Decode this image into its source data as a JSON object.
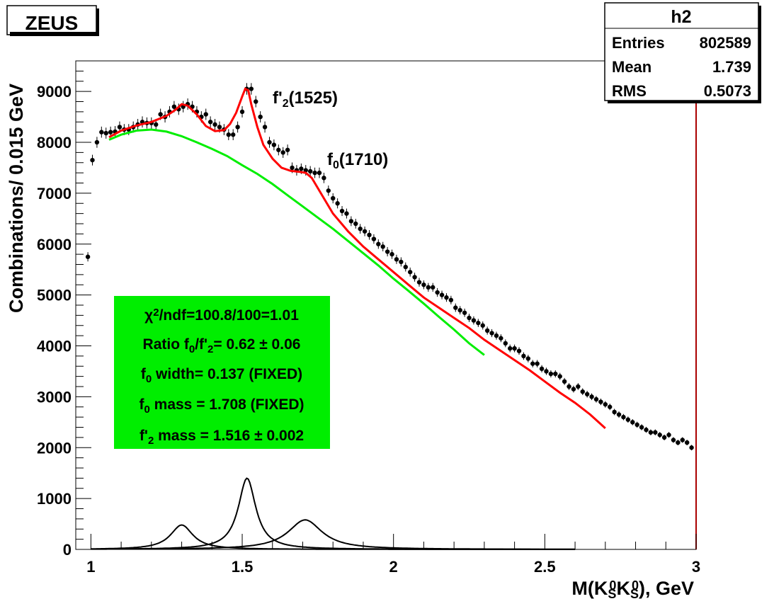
{
  "colors": {
    "frame": "#000000",
    "data_points": "#000000",
    "total_fit": "#ff0000",
    "background_fit": "#00ff00",
    "signal_peaks": "#000000",
    "fit_box": "#00ee00",
    "right_edge_line": "#aa0000"
  },
  "logo": {
    "text": "ZEUS"
  },
  "stats_box": {
    "title": "h2",
    "rows": [
      {
        "label": "Entries",
        "value": "802589"
      },
      {
        "label": "Mean",
        "value": "1.739"
      },
      {
        "label": "RMS",
        "value": "0.5073"
      }
    ]
  },
  "annotations": {
    "f2prime": {
      "base": "f'",
      "sub": "2",
      "rest": "(1525)"
    },
    "f0": {
      "base": "f",
      "sub": "0",
      "rest": "(1710)"
    }
  },
  "fit_box": {
    "line1": {
      "chi": "χ",
      "sup": "2",
      "rest": "/ndf=100.8/100=1.01"
    },
    "line2": {
      "pre": "Ratio f",
      "sub1": "0",
      "mid": "/f'",
      "sub2": "2",
      "post": "= 0.62 ± 0.06"
    },
    "line3": {
      "pre": "f",
      "sub": "0",
      "post": " width= 0.137 (FIXED)"
    },
    "line4": {
      "pre": "f",
      "sub": "0",
      "post": " mass = 1.708 (FIXED)"
    },
    "line5": {
      "pre": "f'",
      "sub": "2",
      "post": " mass = 1.516 ± 0.002"
    }
  },
  "chart_data": {
    "type": "scatter",
    "xlabel": {
      "pre": "M(K",
      "sub1": "S",
      "sup1": "0",
      "mid": "K",
      "sub2": "S",
      "sup2": "0",
      "post": "), GeV"
    },
    "ylabel": "Combinations/ 0.015 GeV",
    "xlim": [
      0.95,
      3.0
    ],
    "ylim": [
      0,
      9600
    ],
    "xticks": [
      1,
      1.5,
      2,
      2.5,
      3
    ],
    "xtick_labels": [
      "1",
      "1.5",
      "2",
      "2.5",
      "3"
    ],
    "yticks": [
      0,
      1000,
      2000,
      3000,
      4000,
      5000,
      6000,
      7000,
      8000,
      9000
    ],
    "ytick_labels": [
      "0",
      "1000",
      "2000",
      "3000",
      "4000",
      "5000",
      "6000",
      "7000",
      "8000",
      "9000"
    ],
    "series": [
      {
        "kind": "points",
        "x": [
          0.99,
          1.005,
          1.02,
          1.035,
          1.05,
          1.065,
          1.08,
          1.095,
          1.11,
          1.125,
          1.14,
          1.155,
          1.17,
          1.185,
          1.2,
          1.215,
          1.23,
          1.245,
          1.26,
          1.275,
          1.29,
          1.305,
          1.32,
          1.335,
          1.35,
          1.365,
          1.38,
          1.395,
          1.41,
          1.425,
          1.44,
          1.455,
          1.47,
          1.485,
          1.5,
          1.515,
          1.53,
          1.545,
          1.56,
          1.575,
          1.59,
          1.605,
          1.62,
          1.635,
          1.65,
          1.665,
          1.68,
          1.695,
          1.71,
          1.725,
          1.74,
          1.755,
          1.77,
          1.785,
          1.8,
          1.815,
          1.83,
          1.845,
          1.86,
          1.875,
          1.89,
          1.905,
          1.92,
          1.935,
          1.95,
          1.965,
          1.98,
          1.995,
          2.01,
          2.025,
          2.04,
          2.055,
          2.07,
          2.085,
          2.1,
          2.115,
          2.13,
          2.145,
          2.16,
          2.175,
          2.19,
          2.205,
          2.22,
          2.235,
          2.25,
          2.265,
          2.28,
          2.295,
          2.31,
          2.325,
          2.34,
          2.355,
          2.37,
          2.385,
          2.4,
          2.415,
          2.43,
          2.445,
          2.46,
          2.475,
          2.49,
          2.505,
          2.52,
          2.535,
          2.55,
          2.565,
          2.58,
          2.595,
          2.61,
          2.625,
          2.64,
          2.655,
          2.67,
          2.685,
          2.7,
          2.715,
          2.73,
          2.745,
          2.76,
          2.775,
          2.79,
          2.805,
          2.82,
          2.835,
          2.85,
          2.865,
          2.88,
          2.895,
          2.91,
          2.925,
          2.94,
          2.955,
          2.97,
          2.985
        ],
        "y": [
          5750,
          7650,
          8000,
          8200,
          8180,
          8200,
          8210,
          8300,
          8250,
          8250,
          8300,
          8350,
          8400,
          8380,
          8380,
          8350,
          8550,
          8500,
          8600,
          8700,
          8650,
          8700,
          8750,
          8700,
          8600,
          8500,
          8550,
          8400,
          8350,
          8300,
          8250,
          8150,
          8150,
          8300,
          8600,
          9050,
          9050,
          8800,
          8500,
          8300,
          8000,
          7950,
          7850,
          7800,
          7850,
          7500,
          7450,
          7480,
          7450,
          7430,
          7400,
          7400,
          7300,
          7050,
          6900,
          6800,
          6650,
          6600,
          6450,
          6400,
          6300,
          6250,
          6180,
          6100,
          6000,
          5950,
          5850,
          5800,
          5700,
          5650,
          5550,
          5450,
          5350,
          5250,
          5200,
          5150,
          5150,
          5050,
          5000,
          4950,
          4900,
          4750,
          4700,
          4650,
          4550,
          4500,
          4450,
          4400,
          4300,
          4250,
          4200,
          4150,
          4050,
          3950,
          3950,
          3900,
          3800,
          3750,
          3650,
          3650,
          3550,
          3500,
          3450,
          3450,
          3400,
          3300,
          3200,
          3150,
          3200,
          3100,
          3050,
          3000,
          2950,
          2900,
          2850,
          2800,
          2700,
          2650,
          2600,
          2550,
          2500,
          2450,
          2400,
          2350,
          2300,
          2300,
          2250,
          2200,
          2250,
          2150,
          2100,
          2150,
          2100,
          2000
        ]
      },
      {
        "kind": "total_fit",
        "x": [
          1.06,
          1.1,
          1.15,
          1.2,
          1.25,
          1.28,
          1.3,
          1.32,
          1.35,
          1.38,
          1.41,
          1.44,
          1.46,
          1.48,
          1.5,
          1.51,
          1.52,
          1.53,
          1.55,
          1.57,
          1.6,
          1.63,
          1.66,
          1.69,
          1.71,
          1.73,
          1.76,
          1.8,
          1.85,
          1.9,
          1.95,
          2.0,
          2.05,
          2.1,
          2.15,
          2.2,
          2.25,
          2.3,
          2.35,
          2.4,
          2.45,
          2.5,
          2.55,
          2.6,
          2.65,
          2.7
        ],
        "y": [
          8100,
          8230,
          8330,
          8400,
          8520,
          8640,
          8750,
          8720,
          8550,
          8320,
          8220,
          8240,
          8360,
          8580,
          8900,
          9050,
          9020,
          8750,
          8300,
          7950,
          7680,
          7500,
          7440,
          7420,
          7400,
          7300,
          7000,
          6600,
          6250,
          5950,
          5700,
          5450,
          5200,
          4950,
          4750,
          4550,
          4350,
          4120,
          3920,
          3720,
          3520,
          3300,
          3080,
          2880,
          2650,
          2380
        ]
      },
      {
        "kind": "background_fit",
        "x": [
          1.06,
          1.1,
          1.15,
          1.2,
          1.25,
          1.3,
          1.35,
          1.4,
          1.45,
          1.5,
          1.55,
          1.6,
          1.65,
          1.7,
          1.75,
          1.8,
          1.85,
          1.9,
          1.95,
          2.0,
          2.05,
          2.1,
          2.15,
          2.2,
          2.25,
          2.3
        ],
        "y": [
          8050,
          8150,
          8230,
          8250,
          8210,
          8120,
          8000,
          7870,
          7730,
          7550,
          7380,
          7180,
          6960,
          6740,
          6520,
          6300,
          6060,
          5820,
          5580,
          5320,
          5080,
          4830,
          4570,
          4320,
          4050,
          3820
        ]
      },
      {
        "kind": "signal_f2_1270",
        "peak_x": 1.3,
        "peak_y": 480,
        "width": 0.09
      },
      {
        "kind": "signal_f2prime_1525",
        "peak_x": 1.516,
        "peak_y": 1400,
        "width": 0.07
      },
      {
        "kind": "signal_f0_1710",
        "peak_x": 1.708,
        "peak_y": 580,
        "width": 0.137
      }
    ]
  }
}
